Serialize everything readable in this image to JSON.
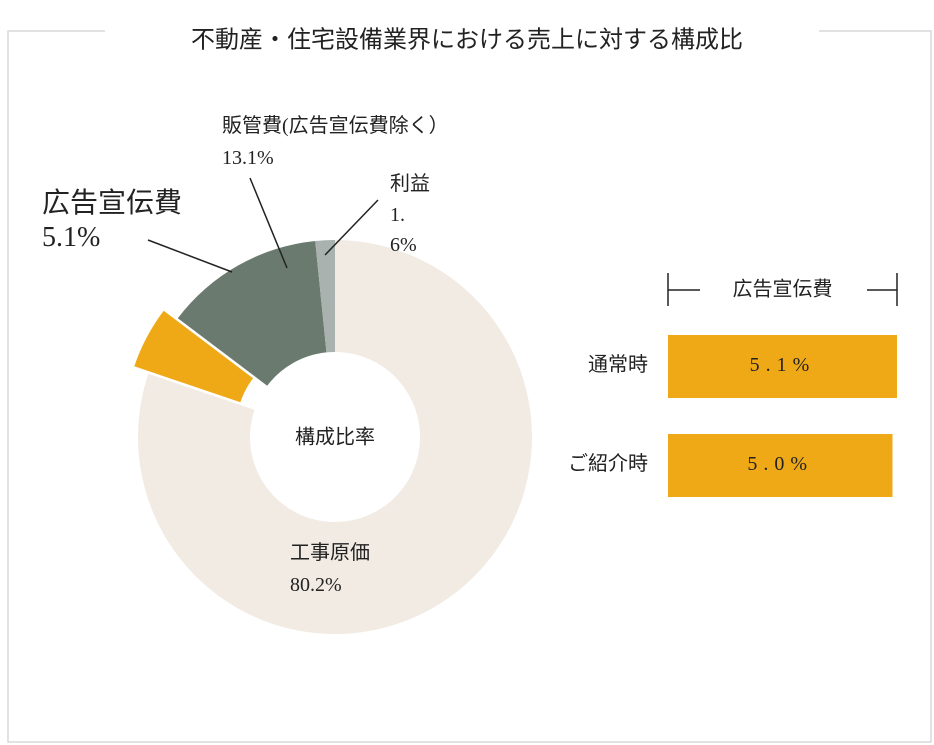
{
  "chart_data": [
    {
      "type": "pie",
      "title": "不動産・住宅設備業界における売上に対する構成比",
      "center_label": "構成比率",
      "categories": [
        "工事原価",
        "広告宣伝費",
        "販管費(広告宣伝費除く）",
        "利益"
      ],
      "values": [
        80.2,
        5.1,
        13.1,
        1.6
      ],
      "value_labels": [
        "80.2%",
        "5.1%",
        "13.1%",
        "1.6%"
      ],
      "colors": [
        "#f2ebe3",
        "#f0a916",
        "#6b7a6e",
        "#a9b2ae"
      ],
      "exploded": [
        false,
        true,
        false,
        false
      ]
    },
    {
      "type": "bar",
      "orientation": "horizontal",
      "title": "広告宣伝費",
      "categories": [
        "通常時",
        "ご紹介時"
      ],
      "values": [
        5.1,
        5.0
      ],
      "value_labels": [
        "5.1%",
        "5.0%"
      ],
      "color": "#f0a916",
      "xlim": [
        0,
        5.1
      ]
    }
  ]
}
